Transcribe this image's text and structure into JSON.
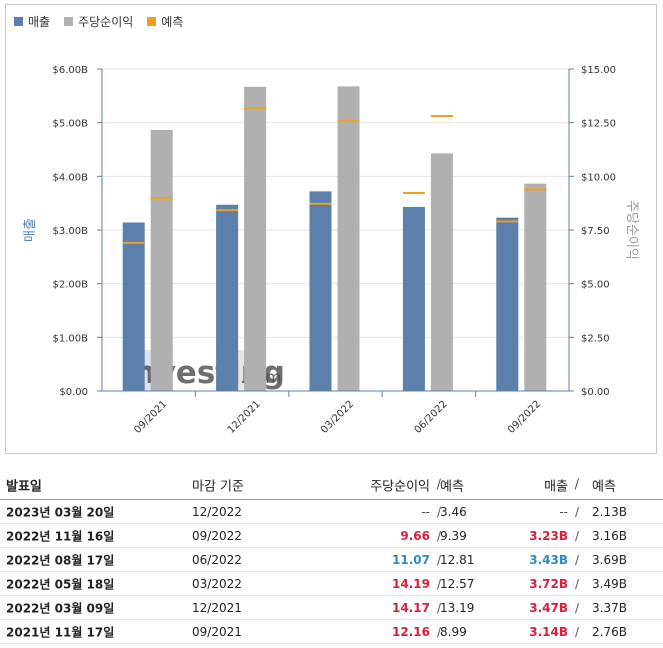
{
  "legend": {
    "revenue": "매출",
    "eps": "주당순이익",
    "forecast": "예측"
  },
  "colors": {
    "revenue": "#5b80ac",
    "eps": "#b0b0b0",
    "forecast": "#f0a020",
    "axis": "#5b80ac",
    "pos": "#d71f3c",
    "neg": "#2b8cc8"
  },
  "watermark": {
    "brand": "Investing",
    "suffix": ".com"
  },
  "chart_data": {
    "type": "bar",
    "categories": [
      "09/2021",
      "12/2021",
      "03/2022",
      "06/2022",
      "09/2022"
    ],
    "series": [
      {
        "name": "매출",
        "axis": "left",
        "values": [
          3.14,
          3.47,
          3.72,
          3.43,
          3.23
        ]
      },
      {
        "name": "주당순이익",
        "axis": "right",
        "values": [
          12.16,
          14.17,
          14.19,
          11.07,
          9.66
        ]
      },
      {
        "name": "예측 (매출)",
        "axis": "left",
        "values": [
          2.76,
          3.37,
          3.49,
          3.69,
          3.16
        ]
      },
      {
        "name": "예측 (주당순이익)",
        "axis": "right",
        "values": [
          8.99,
          13.19,
          12.57,
          12.81,
          9.39
        ]
      }
    ],
    "ylabel": "매출",
    "y2label": "주당순이익",
    "ylim": [
      0,
      6
    ],
    "y2lim": [
      0,
      15
    ],
    "yticks": [
      "$0.00",
      "$1.00B",
      "$2.00B",
      "$3.00B",
      "$4.00B",
      "$5.00B",
      "$6.00B"
    ],
    "y2ticks": [
      "$0.00",
      "$2.50",
      "$5.00",
      "$7.50",
      "$10.00",
      "$12.50",
      "$15.00"
    ],
    "legend_position": "top-left"
  },
  "earnings_table": {
    "headers": {
      "date": "발표일",
      "period": "마감 기준",
      "eps": "주당순이익",
      "forecast": "예측",
      "revenue": "매출",
      "sep": "/"
    },
    "rows": [
      {
        "date": "2023년 03월 20일",
        "period": "12/2022",
        "eps": "--",
        "eps_forecast": "3.46",
        "revenue": "--",
        "revenue_forecast": "2.13B",
        "eps_status": "na",
        "rev_status": "na"
      },
      {
        "date": "2022년 11월 16일",
        "period": "09/2022",
        "eps": "9.66",
        "eps_forecast": "9.39",
        "revenue": "3.23B",
        "revenue_forecast": "3.16B",
        "eps_status": "pos",
        "rev_status": "pos"
      },
      {
        "date": "2022년 08월 17일",
        "period": "06/2022",
        "eps": "11.07",
        "eps_forecast": "12.81",
        "revenue": "3.43B",
        "revenue_forecast": "3.69B",
        "eps_status": "neg",
        "rev_status": "neg"
      },
      {
        "date": "2022년 05월 18일",
        "period": "03/2022",
        "eps": "14.19",
        "eps_forecast": "12.57",
        "revenue": "3.72B",
        "revenue_forecast": "3.49B",
        "eps_status": "pos",
        "rev_status": "pos"
      },
      {
        "date": "2022년 03월 09일",
        "period": "12/2021",
        "eps": "14.17",
        "eps_forecast": "13.19",
        "revenue": "3.47B",
        "revenue_forecast": "3.37B",
        "eps_status": "pos",
        "rev_status": "pos"
      },
      {
        "date": "2021년 11월 17일",
        "period": "09/2021",
        "eps": "12.16",
        "eps_forecast": "8.99",
        "revenue": "3.14B",
        "revenue_forecast": "2.76B",
        "eps_status": "pos",
        "rev_status": "pos"
      }
    ]
  }
}
